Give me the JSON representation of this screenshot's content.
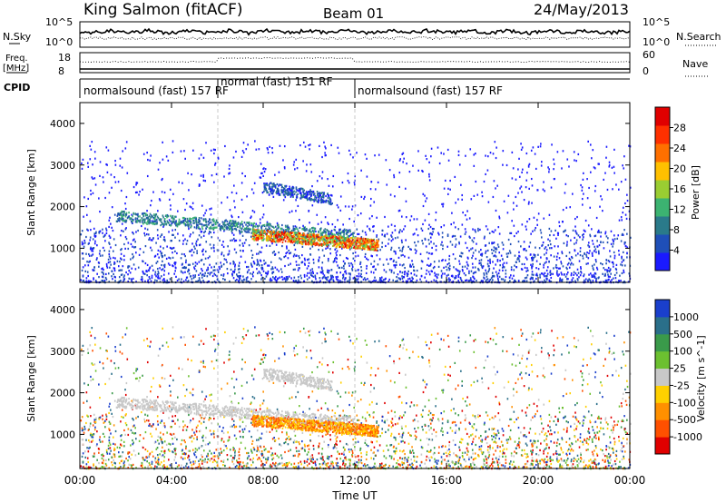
{
  "header": {
    "station": "King Salmon (fitACF)",
    "beam": "Beam 01",
    "date": "24/May/2013"
  },
  "chart_data": [
    {
      "type": "line",
      "panel": "noise",
      "left_label": "N.Sky",
      "right_label": "N.Search",
      "left_ticks": [
        "10^5",
        "10^0"
      ],
      "right_ticks": [
        "10^5",
        "10^0"
      ]
    },
    {
      "type": "line",
      "panel": "frequency",
      "left_label_line1": "Freq.",
      "left_label_line2": "[MHz]",
      "right_label": "Nave",
      "left_ticks": [
        18,
        8
      ],
      "right_ticks": [
        60,
        0
      ]
    },
    {
      "type": "table",
      "panel": "cpid",
      "label": "CPID",
      "segments": [
        {
          "start_hour": 0,
          "end_hour": 6,
          "text": "normalsound (fast) 157 RF"
        },
        {
          "start_hour": 6,
          "end_hour": 12,
          "text": "normal (fast) 151 RF"
        },
        {
          "start_hour": 12,
          "end_hour": 24,
          "text": "normalsound (fast) 157 RF"
        }
      ]
    },
    {
      "type": "heatmap",
      "panel": "power",
      "ylabel": "Slant Range [km]",
      "ylim": [
        180,
        4500
      ],
      "yticks": [
        1000,
        2000,
        3000,
        4000
      ],
      "colorbar_label": "Power [dB]",
      "colorbar_ticks": [
        4,
        8,
        12,
        16,
        20,
        24,
        28
      ],
      "colorbar_colors": [
        "#1a1aff",
        "#1f4fb8",
        "#2a7a8a",
        "#3cb371",
        "#9acd32",
        "#ffc000",
        "#ff7000",
        "#ff3000",
        "#e00000"
      ],
      "features": [
        {
          "t_start": 1.5,
          "t_end": 12,
          "range_start": 1800,
          "range_end": 1300,
          "strength": "moderate"
        },
        {
          "t_start": 7.5,
          "t_end": 13,
          "range_start": 1350,
          "range_end": 1100,
          "strength": "strong"
        },
        {
          "t_start": 8,
          "t_end": 11,
          "range_start": 2500,
          "range_end": 2200,
          "strength": "weak"
        }
      ]
    },
    {
      "type": "heatmap",
      "panel": "velocity",
      "ylabel": "Slant Range [km]",
      "ylim": [
        180,
        4500
      ],
      "yticks": [
        1000,
        2000,
        3000,
        4000
      ],
      "colorbar_label": "Velocity [m s^-1]",
      "colorbar_ticks": [
        1000,
        500,
        100,
        25,
        -25,
        -100,
        -500,
        -1000
      ],
      "colorbar_colors": [
        "#1a3fcc",
        "#2a6f8a",
        "#3a9a4a",
        "#6cc030",
        "#c8c8c8",
        "#ffd000",
        "#ff9000",
        "#ff5000",
        "#e00000"
      ]
    }
  ],
  "xaxis": {
    "label": "Time UT",
    "ticks": [
      "00:00",
      "04:00",
      "08:00",
      "12:00",
      "16:00",
      "20:00",
      "00:00"
    ],
    "range_hours": [
      0,
      24
    ]
  }
}
